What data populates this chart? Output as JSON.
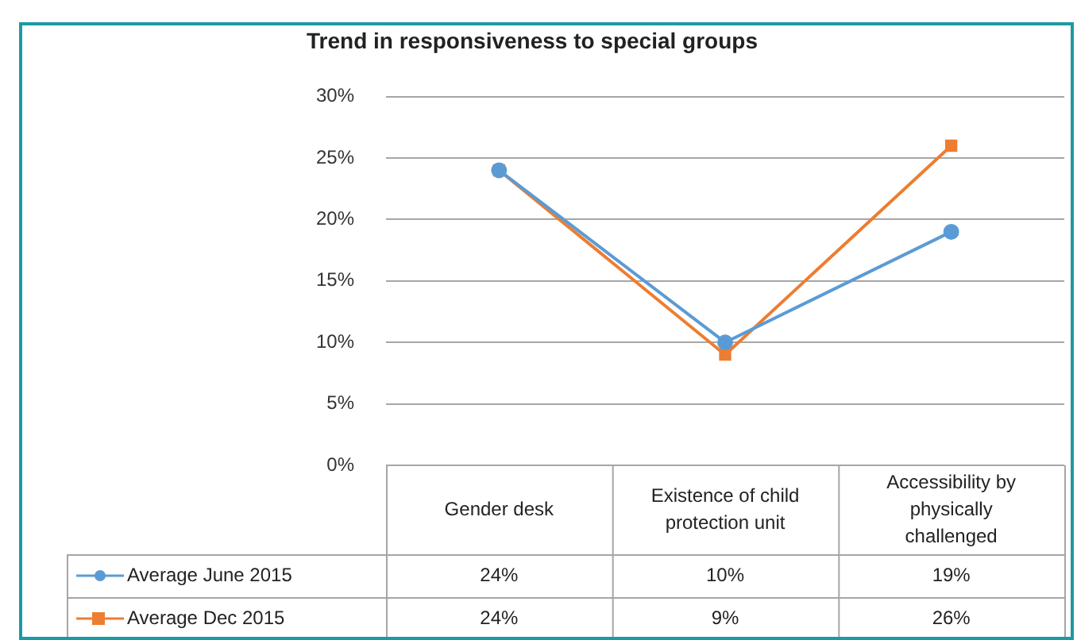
{
  "chart_data": {
    "type": "line",
    "title": "Trend in responsiveness to special groups",
    "categories": [
      "Gender desk",
      "Existence of child protection unit",
      "Accessibility by physically challenged"
    ],
    "series": [
      {
        "name": "Average June 2015",
        "color": "#5b9bd5",
        "marker": "circle",
        "values": [
          24,
          10,
          19
        ],
        "value_labels": [
          "24%",
          "10%",
          "19%"
        ]
      },
      {
        "name": "Average Dec 2015",
        "color": "#ed7d31",
        "marker": "square",
        "values": [
          24,
          9,
          26
        ],
        "value_labels": [
          "24%",
          "9%",
          "26%"
        ]
      }
    ],
    "ylim": [
      0,
      30
    ],
    "yticks": [
      {
        "value": 0,
        "label": "0%"
      },
      {
        "value": 5,
        "label": "5%"
      },
      {
        "value": 10,
        "label": "10%"
      },
      {
        "value": 15,
        "label": "15%"
      },
      {
        "value": 20,
        "label": "20%"
      },
      {
        "value": 25,
        "label": "25%"
      },
      {
        "value": 30,
        "label": "30%"
      }
    ],
    "grid": "y",
    "legend": "bottom"
  }
}
